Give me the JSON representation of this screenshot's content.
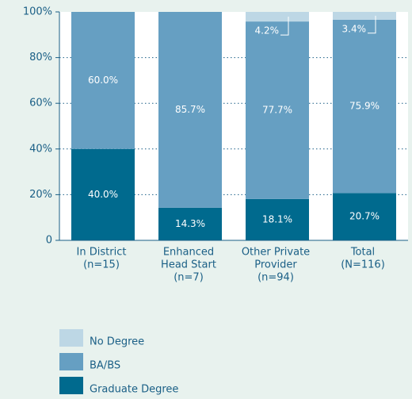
{
  "chart_data": {
    "type": "stacked_bar",
    "categories": [
      [
        "In District",
        "(n=15)"
      ],
      [
        "Enhanced",
        "Head Start",
        "(n=7)"
      ],
      [
        "Other Private",
        "Provider",
        "(n=94)"
      ],
      [
        "Total",
        "(N=116)"
      ]
    ],
    "series": [
      {
        "name": "Graduate Degree",
        "color": "#006a8e",
        "values": [
          40.0,
          14.3,
          18.1,
          20.7
        ],
        "value_labels": [
          "40.0%",
          "14.3%",
          "18.1%",
          "20.7%"
        ]
      },
      {
        "name": "BA/BS",
        "color": "#669fc2",
        "values": [
          60.0,
          85.7,
          77.7,
          75.9
        ],
        "value_labels": [
          "60.0%",
          "85.7%",
          "77.7%",
          "75.9%"
        ]
      },
      {
        "name": "No Degree",
        "color": "#bdd7e5",
        "values": [
          0,
          0,
          4.2,
          3.4
        ],
        "value_labels": [
          null,
          null,
          "4.2%",
          "3.4%"
        ]
      }
    ],
    "ylim": [
      0,
      100
    ],
    "yticks": [
      0,
      {
        "value": 20,
        "label": "20%"
      },
      {
        "value": 40,
        "label": "40%"
      },
      {
        "value": 60,
        "label": "60%"
      },
      {
        "value": 80,
        "label": "80%"
      },
      {
        "value": 100,
        "label": "100%"
      }
    ],
    "grid": true,
    "legend_order": [
      2,
      1,
      0
    ]
  }
}
